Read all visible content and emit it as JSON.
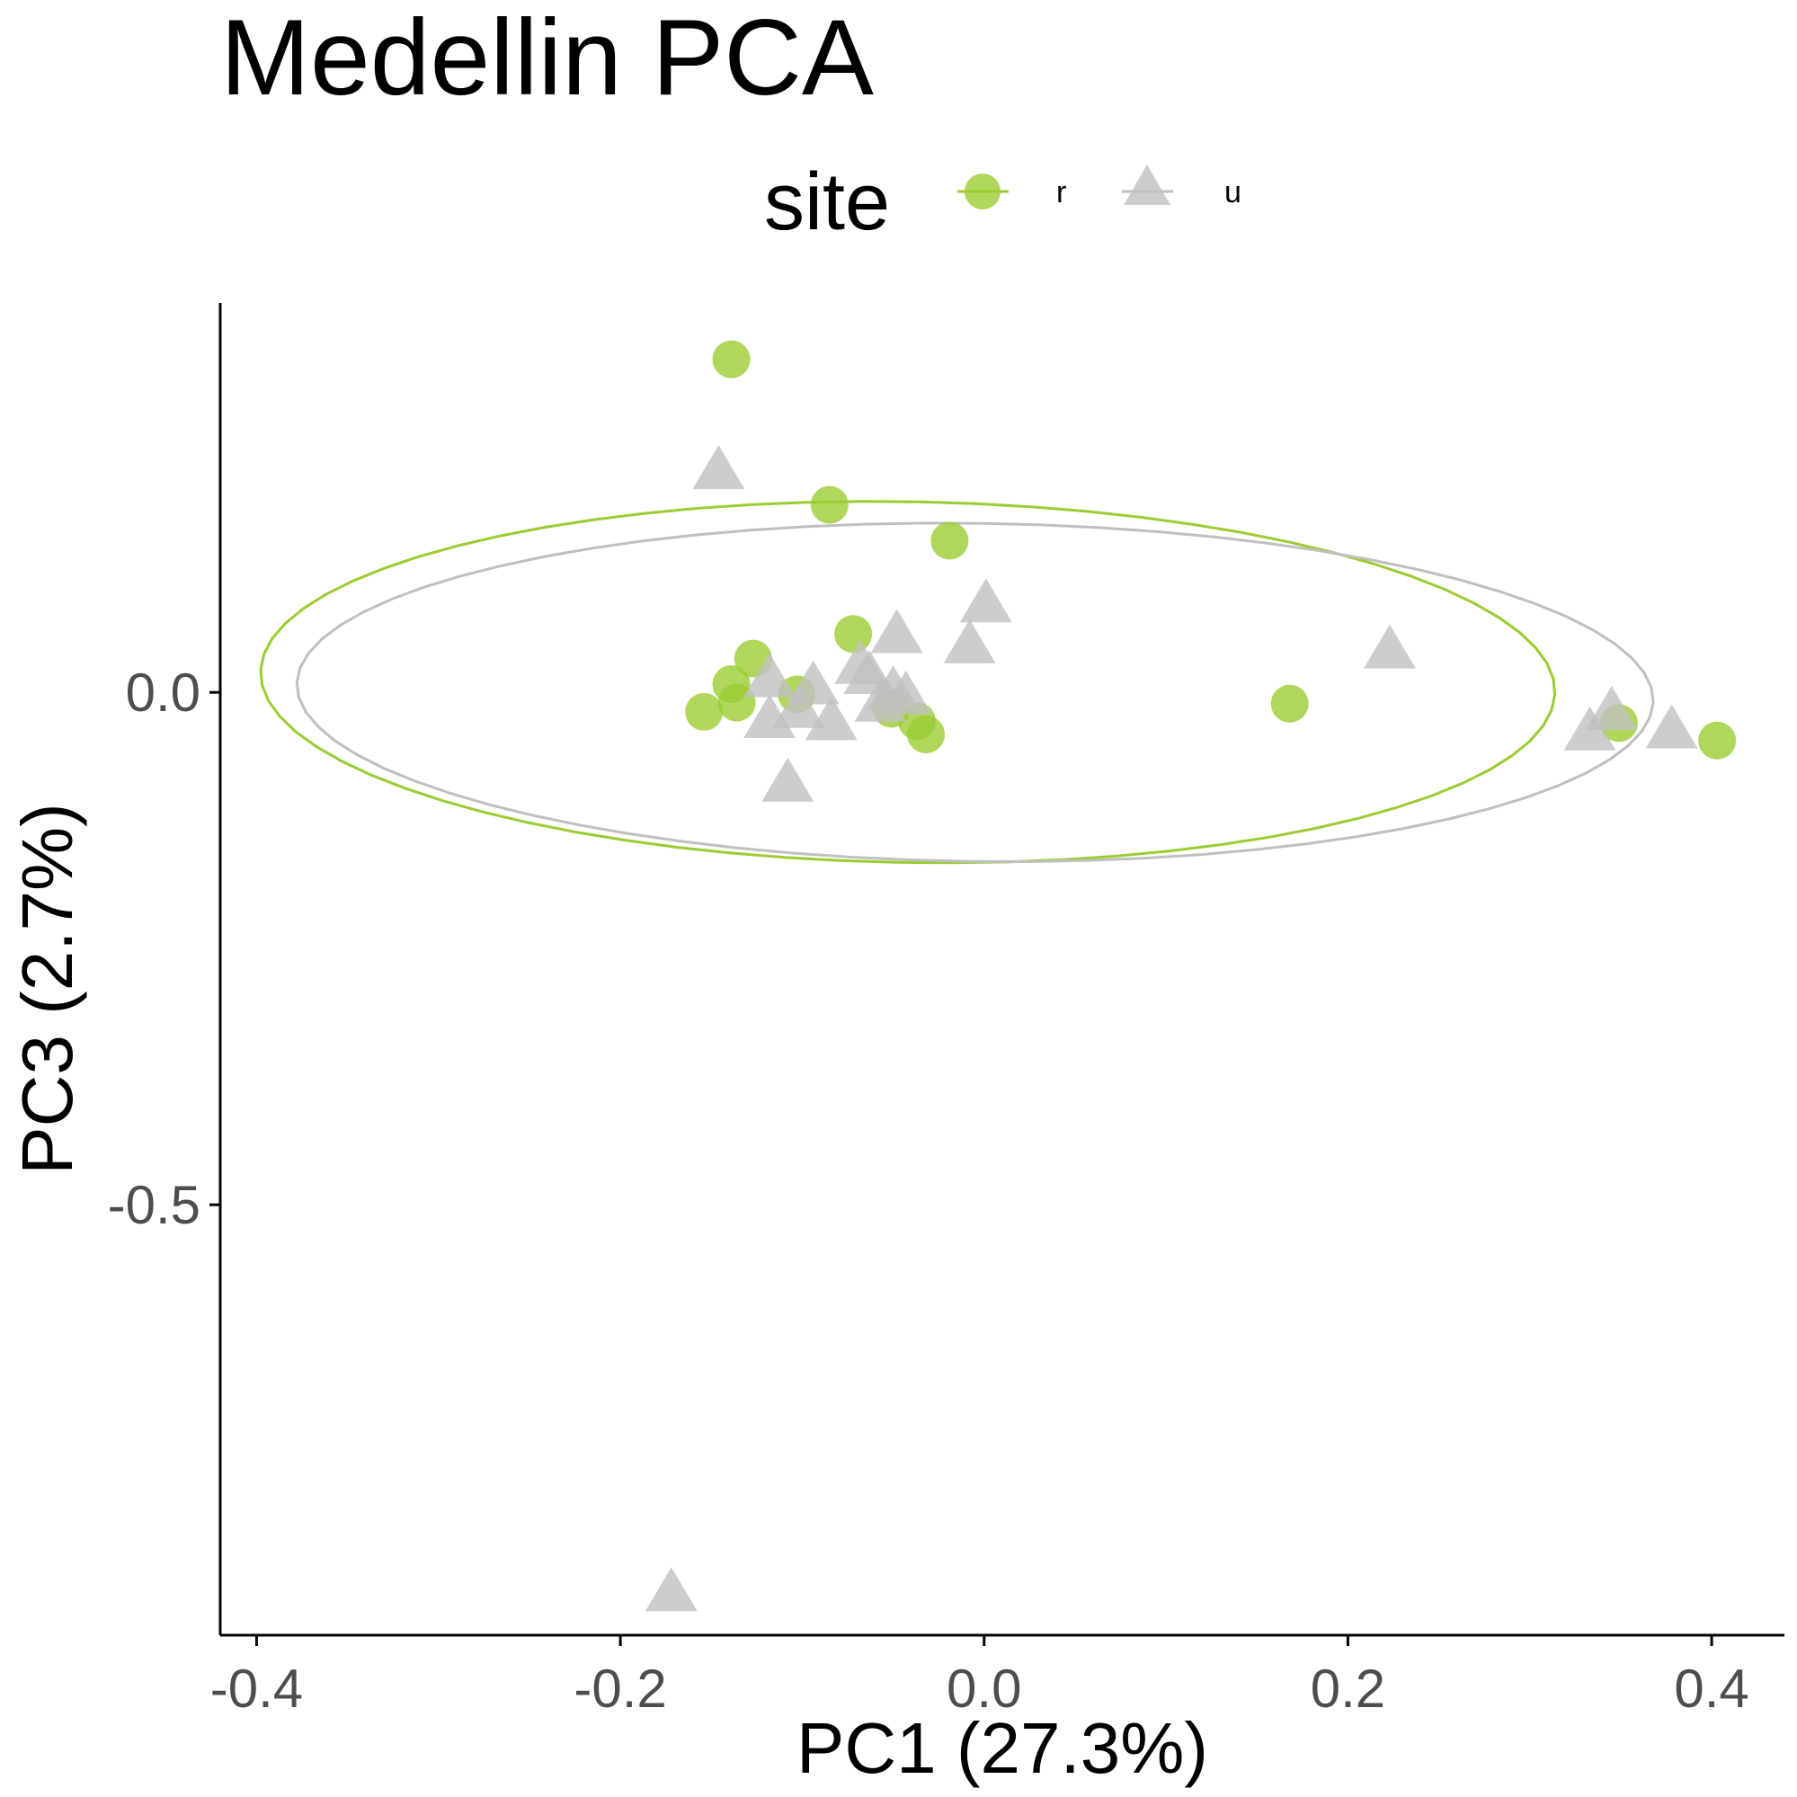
{
  "chart_data": {
    "type": "scatter",
    "title": "Medellin PCA",
    "xlabel": "PC1 (27.3%)",
    "ylabel": "PC3 (2.7%)",
    "xlim": [
      -0.42,
      0.44
    ],
    "ylim": [
      -0.92,
      0.38
    ],
    "xticks": [
      -0.4,
      -0.2,
      0.0,
      0.2,
      0.4
    ],
    "xtick_labels": [
      "-0.4",
      "-0.2",
      "0.0",
      "0.2",
      "0.4"
    ],
    "yticks": [
      0.0,
      -0.5
    ],
    "ytick_labels": [
      "0.0",
      "-0.5"
    ],
    "grid": false,
    "legend": {
      "title": "site",
      "position": "top"
    },
    "series": [
      {
        "name": "r",
        "color": "#9acd32",
        "marker": "circle",
        "points": [
          [
            -0.139,
            0.325
          ],
          [
            -0.085,
            0.183
          ],
          [
            -0.019,
            0.148
          ],
          [
            -0.072,
            0.057
          ],
          [
            -0.127,
            0.033
          ],
          [
            -0.139,
            0.008
          ],
          [
            -0.136,
            -0.01
          ],
          [
            -0.154,
            -0.019
          ],
          [
            -0.103,
            -0.002
          ],
          [
            -0.051,
            -0.016
          ],
          [
            -0.037,
            -0.028
          ],
          [
            -0.032,
            -0.041
          ],
          [
            0.168,
            -0.011
          ],
          [
            0.349,
            -0.03
          ],
          [
            0.403,
            -0.047
          ]
        ],
        "ellipse": {
          "center": [
            -0.042,
            0.01
          ],
          "semi_axes": [
            0.356,
            0.176
          ],
          "angle_deg": -2.0
        }
      },
      {
        "name": "u",
        "color": "#c0c0c0",
        "marker": "triangle",
        "points": [
          [
            -0.146,
            0.215
          ],
          [
            -0.048,
            0.055
          ],
          [
            0.001,
            0.085
          ],
          [
            -0.008,
            0.045
          ],
          [
            -0.068,
            0.025
          ],
          [
            -0.063,
            0.015
          ],
          [
            -0.118,
            0.012
          ],
          [
            -0.094,
            0.005
          ],
          [
            -0.05,
            0.0
          ],
          [
            -0.043,
            -0.005
          ],
          [
            -0.057,
            -0.012
          ],
          [
            -0.102,
            -0.018
          ],
          [
            -0.118,
            -0.028
          ],
          [
            -0.084,
            -0.03
          ],
          [
            -0.108,
            -0.09
          ],
          [
            -0.172,
            -0.88
          ],
          [
            0.223,
            0.04
          ],
          [
            0.345,
            -0.02
          ],
          [
            0.333,
            -0.04
          ],
          [
            0.378,
            -0.038
          ]
        ],
        "ellipse": {
          "center": [
            -0.005,
            0.0
          ],
          "semi_axes": [
            0.373,
            0.165
          ],
          "angle_deg": -1.5
        }
      }
    ]
  }
}
